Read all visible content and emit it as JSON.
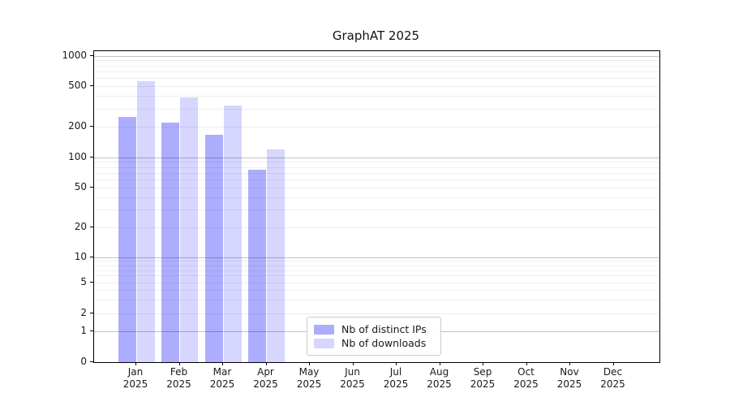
{
  "title": "GraphAT 2025",
  "legend": {
    "items": [
      {
        "label": "Nb of distinct IPs",
        "color": "#adadff"
      },
      {
        "label": "Nb of downloads",
        "color": "#d6d6ff"
      }
    ]
  },
  "chart_data": {
    "type": "bar",
    "title": "GraphAT 2025",
    "categories": [
      "Jan",
      "Feb",
      "Mar",
      "Apr",
      "May",
      "Jun",
      "Jul",
      "Aug",
      "Sep",
      "Oct",
      "Nov",
      "Dec"
    ],
    "x_tick_year": "2025",
    "series": [
      {
        "name": "Nb of distinct IPs",
        "color": "#adadff",
        "values": [
          250,
          220,
          165,
          75,
          null,
          null,
          null,
          null,
          null,
          null,
          null,
          null
        ]
      },
      {
        "name": "Nb of downloads",
        "color": "#d6d6ff",
        "values": [
          560,
          390,
          325,
          120,
          null,
          null,
          null,
          null,
          null,
          null,
          null,
          null
        ]
      }
    ],
    "y_axis": {
      "scale": "symlog",
      "tick_labels": [
        "1000",
        "500",
        "200",
        "100",
        "50",
        "20",
        "10",
        "5",
        "2",
        "1",
        "0"
      ],
      "tick_values": [
        1000,
        500,
        200,
        100,
        50,
        20,
        10,
        5,
        2,
        1,
        0
      ],
      "ylim": [
        0,
        1000
      ]
    },
    "grid": {
      "horizontal": true,
      "minor_gridlines": true,
      "major_values": [
        1,
        10,
        100,
        1000
      ]
    },
    "legend_position": "lower-center"
  }
}
